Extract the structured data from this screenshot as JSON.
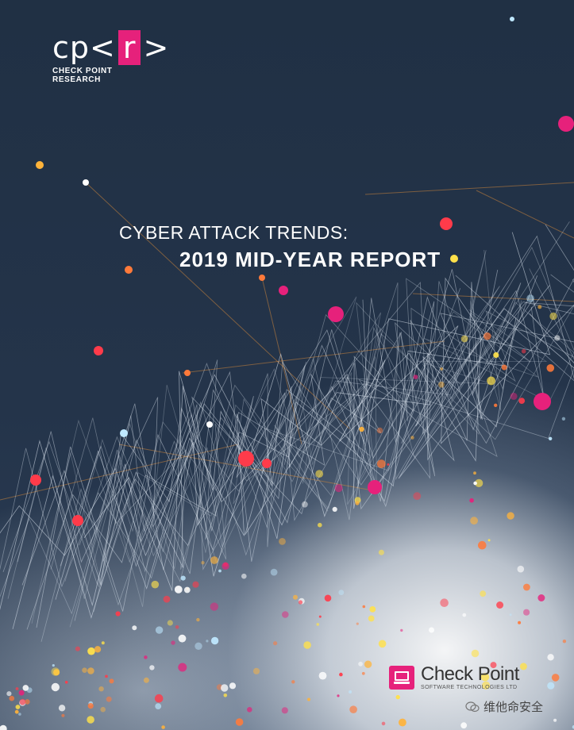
{
  "logo": {
    "mark_left": "cp<",
    "mark_box": "r",
    "mark_right": ">",
    "subtitle": "CHECK POINT RESEARCH"
  },
  "title": {
    "line1": "CYBER ATTACK TRENDS:",
    "line2": "2019 MID-YEAR REPORT"
  },
  "brand": {
    "name": "Check Point",
    "tagline": "SOFTWARE TECHNOLOGIES LTD"
  },
  "watermark": {
    "text": "维他命安全"
  },
  "colors": {
    "background": "#223045",
    "accent": "#e6217b",
    "node_colors": [
      "#ff3b4a",
      "#ffb33a",
      "#ffe14a",
      "#bfe8ff",
      "#ffffff",
      "#e6217b",
      "#ff7a3a"
    ]
  }
}
